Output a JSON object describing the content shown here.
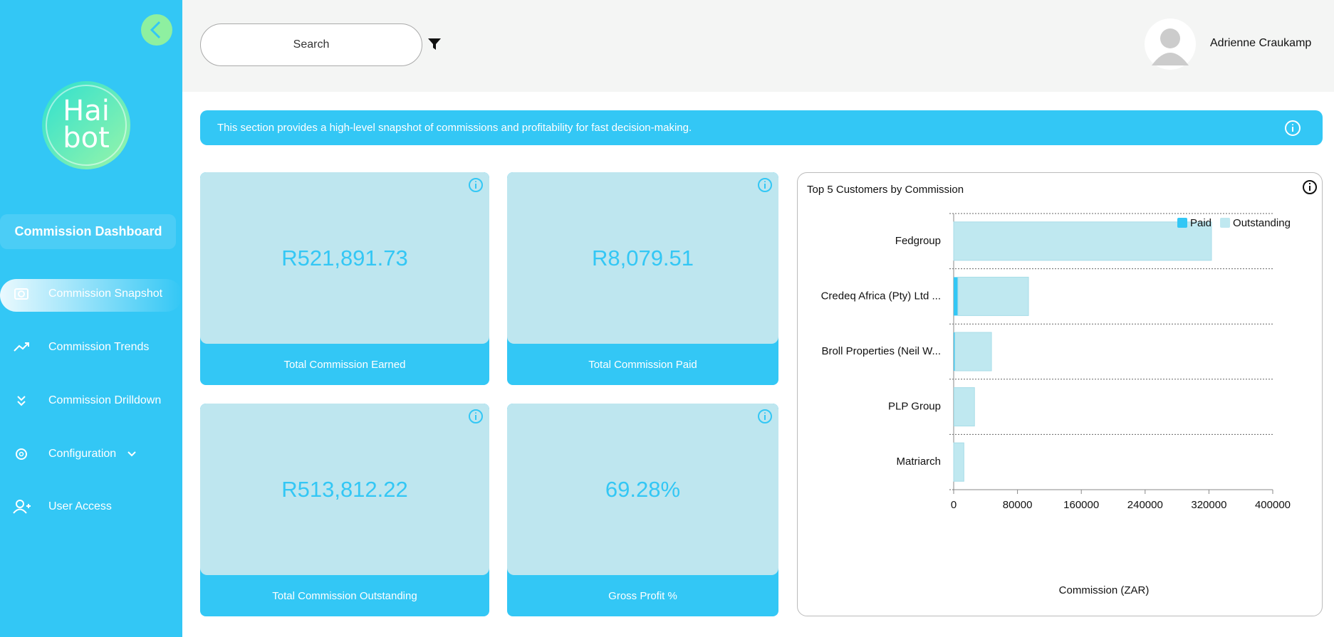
{
  "sidebar": {
    "logo": [
      "Hai",
      "bot"
    ],
    "section": "Commission Dashboard",
    "menu": [
      "Commission Snapshot",
      "Commission Trends",
      "Commission Drilldown",
      "Configuration",
      "User Access"
    ]
  },
  "header": {
    "search": "Search",
    "user": "Adrienne Craukamp"
  },
  "banner": "This section provides a high-level snapshot of commissions and profitability for fast decision-making.",
  "kpis": [
    {
      "value": "R521,891.73",
      "label": "Total Commission Earned"
    },
    {
      "value": "R8,079.51",
      "label": "Total Commission Paid"
    },
    {
      "value": "R513,812.22",
      "label": "Total Commission Outstanding"
    },
    {
      "value": "69.28%",
      "label": "Gross Profit %"
    }
  ],
  "chart_data": {
    "type": "bar",
    "orientation": "horizontal",
    "stacked": true,
    "title": "Top 5 Customers by Commission",
    "x_label": "Commission (ZAR)",
    "categories": [
      "Fedgroup",
      "Credeq Africa (Pty) Ltd ...",
      "Broll Properties (Neil W...",
      "PLP Group",
      "Matriarch"
    ],
    "series": [
      {
        "name": "Paid",
        "color": "#33c7f5",
        "values": [
          0,
          5300,
          1500,
          500,
          0
        ]
      },
      {
        "name": "Outstanding",
        "color": "#bfe8f0",
        "values": [
          323200,
          88500,
          45900,
          25600,
          12800
        ]
      }
    ],
    "xlim": [
      0,
      400000
    ],
    "xticks": [
      0,
      80000,
      160000,
      240000,
      320000,
      400000
    ],
    "legend": "top-right"
  }
}
